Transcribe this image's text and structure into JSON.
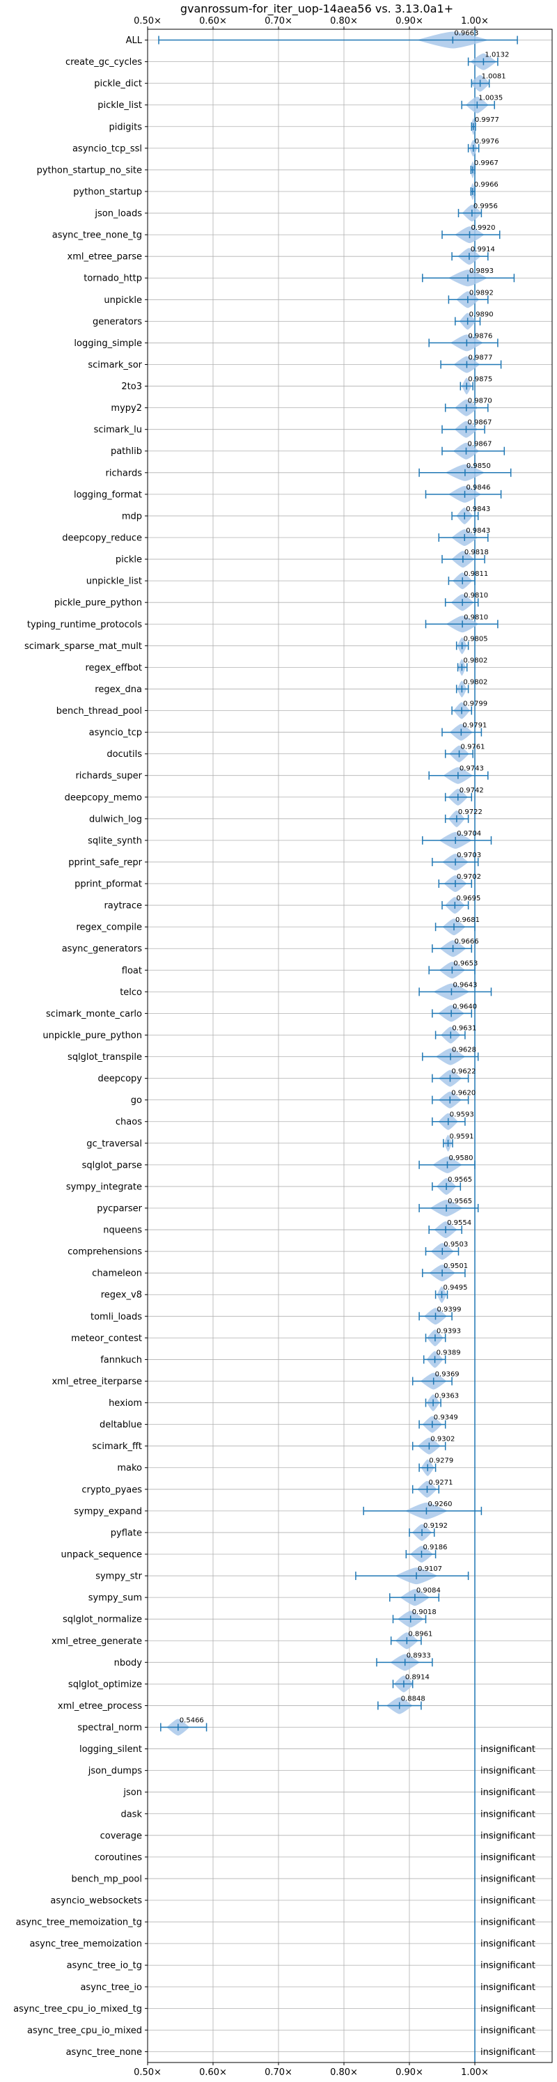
{
  "chart_data": {
    "type": "violin",
    "title": "gvanrossum-for_iter_uop-14aea56 vs. 3.13.0a1+",
    "xlim": [
      0.5,
      1.0
    ],
    "x_ticks": [
      0.5,
      0.6,
      0.7,
      0.8,
      0.9,
      1.0
    ],
    "x_tick_labels": [
      "0.50×",
      "0.60×",
      "0.70×",
      "0.80×",
      "0.90×",
      "1.00×"
    ],
    "reference_line": 1.0,
    "grid": true,
    "colors": {
      "violin": "#a9c8ea",
      "errorbar": "#1f77b4",
      "refline": "#1f77b4",
      "grid": "#b0b0b0"
    },
    "insignificant_label": "insignificant",
    "benchmarks": [
      {
        "name": "ALL",
        "value": 0.9663,
        "label": "0.9663",
        "lo": 0.517,
        "hi": 1.065,
        "spread": 0.11
      },
      {
        "name": "create_gc_cycles",
        "value": 1.0132,
        "label": "1.0132",
        "lo": 0.99,
        "hi": 1.035,
        "spread": 0.04
      },
      {
        "name": "pickle_dict",
        "value": 1.0081,
        "label": "1.0081",
        "lo": 0.995,
        "hi": 1.022,
        "spread": 0.03
      },
      {
        "name": "pickle_list",
        "value": 1.0035,
        "label": "1.0035",
        "lo": 0.98,
        "hi": 1.03,
        "spread": 0.035
      },
      {
        "name": "pidigits",
        "value": 0.9977,
        "label": "0.9977",
        "lo": 0.995,
        "hi": 1.001,
        "spread": 0.008
      },
      {
        "name": "asyncio_tcp_ssl",
        "value": 0.9976,
        "label": "0.9976",
        "lo": 0.99,
        "hi": 1.006,
        "spread": 0.012
      },
      {
        "name": "python_startup_no_site",
        "value": 0.9967,
        "label": "0.9967",
        "lo": 0.994,
        "hi": 1.0,
        "spread": 0.008
      },
      {
        "name": "python_startup",
        "value": 0.9966,
        "label": "0.9966",
        "lo": 0.994,
        "hi": 1.0,
        "spread": 0.008
      },
      {
        "name": "json_loads",
        "value": 0.9956,
        "label": "0.9956",
        "lo": 0.975,
        "hi": 1.01,
        "spread": 0.03
      },
      {
        "name": "async_tree_none_tg",
        "value": 0.992,
        "label": "0.9920",
        "lo": 0.95,
        "hi": 1.038,
        "spread": 0.045
      },
      {
        "name": "xml_etree_parse",
        "value": 0.9914,
        "label": "0.9914",
        "lo": 0.965,
        "hi": 1.02,
        "spread": 0.035
      },
      {
        "name": "tornado_http",
        "value": 0.9893,
        "label": "0.9893",
        "lo": 0.92,
        "hi": 1.06,
        "spread": 0.06
      },
      {
        "name": "unpickle",
        "value": 0.9892,
        "label": "0.9892",
        "lo": 0.96,
        "hi": 1.02,
        "spread": 0.035
      },
      {
        "name": "generators",
        "value": 0.989,
        "label": "0.9890",
        "lo": 0.97,
        "hi": 1.008,
        "spread": 0.025
      },
      {
        "name": "logging_simple",
        "value": 0.9876,
        "label": "0.9876",
        "lo": 0.93,
        "hi": 1.035,
        "spread": 0.05
      },
      {
        "name": "scimark_sor",
        "value": 0.9877,
        "label": "0.9877",
        "lo": 0.948,
        "hi": 1.04,
        "spread": 0.04
      },
      {
        "name": "2to3",
        "value": 0.9875,
        "label": "0.9875",
        "lo": 0.978,
        "hi": 0.997,
        "spread": 0.015
      },
      {
        "name": "mypy2",
        "value": 0.987,
        "label": "0.9870",
        "lo": 0.955,
        "hi": 1.02,
        "spread": 0.035
      },
      {
        "name": "scimark_lu",
        "value": 0.9867,
        "label": "0.9867",
        "lo": 0.95,
        "hi": 1.015,
        "spread": 0.035
      },
      {
        "name": "pathlib",
        "value": 0.9867,
        "label": "0.9867",
        "lo": 0.95,
        "hi": 1.045,
        "spread": 0.04
      },
      {
        "name": "richards",
        "value": 0.985,
        "label": "0.9850",
        "lo": 0.915,
        "hi": 1.055,
        "spread": 0.06
      },
      {
        "name": "logging_format",
        "value": 0.9846,
        "label": "0.9846",
        "lo": 0.925,
        "hi": 1.04,
        "spread": 0.05
      },
      {
        "name": "mdp",
        "value": 0.9843,
        "label": "0.9843",
        "lo": 0.965,
        "hi": 1.005,
        "spread": 0.025
      },
      {
        "name": "deepcopy_reduce",
        "value": 0.9843,
        "label": "0.9843",
        "lo": 0.945,
        "hi": 1.02,
        "spread": 0.04
      },
      {
        "name": "pickle",
        "value": 0.9818,
        "label": "0.9818",
        "lo": 0.95,
        "hi": 1.015,
        "spread": 0.035
      },
      {
        "name": "unpickle_list",
        "value": 0.9811,
        "label": "0.9811",
        "lo": 0.96,
        "hi": 1.0,
        "spread": 0.03
      },
      {
        "name": "pickle_pure_python",
        "value": 0.981,
        "label": "0.9810",
        "lo": 0.955,
        "hi": 1.005,
        "spread": 0.035
      },
      {
        "name": "typing_runtime_protocols",
        "value": 0.981,
        "label": "0.9810",
        "lo": 0.925,
        "hi": 1.035,
        "spread": 0.05
      },
      {
        "name": "scimark_sparse_mat_mult",
        "value": 0.9805,
        "label": "0.9805",
        "lo": 0.972,
        "hi": 0.99,
        "spread": 0.015
      },
      {
        "name": "regex_effbot",
        "value": 0.9802,
        "label": "0.9802",
        "lo": 0.974,
        "hi": 0.988,
        "spread": 0.012
      },
      {
        "name": "regex_dna",
        "value": 0.9802,
        "label": "0.9802",
        "lo": 0.972,
        "hi": 0.99,
        "spread": 0.015
      },
      {
        "name": "bench_thread_pool",
        "value": 0.9799,
        "label": "0.9799",
        "lo": 0.965,
        "hi": 0.995,
        "spread": 0.025
      },
      {
        "name": "asyncio_tcp",
        "value": 0.9791,
        "label": "0.9791",
        "lo": 0.95,
        "hi": 1.01,
        "spread": 0.035
      },
      {
        "name": "docutils",
        "value": 0.9761,
        "label": "0.9761",
        "lo": 0.955,
        "hi": 0.997,
        "spread": 0.03
      },
      {
        "name": "richards_super",
        "value": 0.9743,
        "label": "0.9743",
        "lo": 0.93,
        "hi": 1.02,
        "spread": 0.045
      },
      {
        "name": "deepcopy_memo",
        "value": 0.9742,
        "label": "0.9742",
        "lo": 0.955,
        "hi": 0.995,
        "spread": 0.03
      },
      {
        "name": "dulwich_log",
        "value": 0.9722,
        "label": "0.9722",
        "lo": 0.955,
        "hi": 0.99,
        "spread": 0.025
      },
      {
        "name": "sqlite_synth",
        "value": 0.9704,
        "label": "0.9704",
        "lo": 0.92,
        "hi": 1.025,
        "spread": 0.05
      },
      {
        "name": "pprint_safe_repr",
        "value": 0.9703,
        "label": "0.9703",
        "lo": 0.935,
        "hi": 1.005,
        "spread": 0.04
      },
      {
        "name": "pprint_pformat",
        "value": 0.9702,
        "label": "0.9702",
        "lo": 0.945,
        "hi": 0.995,
        "spread": 0.035
      },
      {
        "name": "raytrace",
        "value": 0.9695,
        "label": "0.9695",
        "lo": 0.95,
        "hi": 0.99,
        "spread": 0.03
      },
      {
        "name": "regex_compile",
        "value": 0.9681,
        "label": "0.9681",
        "lo": 0.94,
        "hi": 1.0,
        "spread": 0.035
      },
      {
        "name": "async_generators",
        "value": 0.9666,
        "label": "0.9666",
        "lo": 0.935,
        "hi": 0.995,
        "spread": 0.04
      },
      {
        "name": "float",
        "value": 0.9653,
        "label": "0.9653",
        "lo": 0.93,
        "hi": 1.0,
        "spread": 0.04
      },
      {
        "name": "telco",
        "value": 0.9643,
        "label": "0.9643",
        "lo": 0.915,
        "hi": 1.025,
        "spread": 0.055
      },
      {
        "name": "scimark_monte_carlo",
        "value": 0.964,
        "label": "0.9640",
        "lo": 0.935,
        "hi": 0.995,
        "spread": 0.04
      },
      {
        "name": "unpickle_pure_python",
        "value": 0.9631,
        "label": "0.9631",
        "lo": 0.94,
        "hi": 0.985,
        "spread": 0.03
      },
      {
        "name": "sqlglot_transpile",
        "value": 0.9628,
        "label": "0.9628",
        "lo": 0.92,
        "hi": 1.005,
        "spread": 0.045
      },
      {
        "name": "deepcopy",
        "value": 0.9622,
        "label": "0.9622",
        "lo": 0.935,
        "hi": 0.99,
        "spread": 0.035
      },
      {
        "name": "go",
        "value": 0.962,
        "label": "0.9620",
        "lo": 0.935,
        "hi": 0.99,
        "spread": 0.035
      },
      {
        "name": "chaos",
        "value": 0.9593,
        "label": "0.9593",
        "lo": 0.935,
        "hi": 0.985,
        "spread": 0.03
      },
      {
        "name": "gc_traversal",
        "value": 0.9591,
        "label": "0.9591",
        "lo": 0.952,
        "hi": 0.966,
        "spread": 0.012
      },
      {
        "name": "sqlglot_parse",
        "value": 0.958,
        "label": "0.9580",
        "lo": 0.915,
        "hi": 1.0,
        "spread": 0.045
      },
      {
        "name": "sympy_integrate",
        "value": 0.9565,
        "label": "0.9565",
        "lo": 0.935,
        "hi": 0.978,
        "spread": 0.03
      },
      {
        "name": "pycparser",
        "value": 0.9565,
        "label": "0.9565",
        "lo": 0.915,
        "hi": 1.005,
        "spread": 0.05
      },
      {
        "name": "nqueens",
        "value": 0.9554,
        "label": "0.9554",
        "lo": 0.93,
        "hi": 0.98,
        "spread": 0.035
      },
      {
        "name": "comprehensions",
        "value": 0.9503,
        "label": "0.9503",
        "lo": 0.925,
        "hi": 0.975,
        "spread": 0.035
      },
      {
        "name": "chameleon",
        "value": 0.9501,
        "label": "0.9501",
        "lo": 0.92,
        "hi": 0.985,
        "spread": 0.04
      },
      {
        "name": "regex_v8",
        "value": 0.9495,
        "label": "0.9495",
        "lo": 0.94,
        "hi": 0.958,
        "spread": 0.015
      },
      {
        "name": "tomli_loads",
        "value": 0.9399,
        "label": "0.9399",
        "lo": 0.915,
        "hi": 0.965,
        "spread": 0.035
      },
      {
        "name": "meteor_contest",
        "value": 0.9393,
        "label": "0.9393",
        "lo": 0.925,
        "hi": 0.955,
        "spread": 0.025
      },
      {
        "name": "fannkuch",
        "value": 0.9389,
        "label": "0.9389",
        "lo": 0.922,
        "hi": 0.955,
        "spread": 0.025
      },
      {
        "name": "xml_etree_iterparse",
        "value": 0.9369,
        "label": "0.9369",
        "lo": 0.905,
        "hi": 0.965,
        "spread": 0.04
      },
      {
        "name": "hexiom",
        "value": 0.9363,
        "label": "0.9363",
        "lo": 0.925,
        "hi": 0.948,
        "spread": 0.02
      },
      {
        "name": "deltablue",
        "value": 0.9349,
        "label": "0.9349",
        "lo": 0.915,
        "hi": 0.955,
        "spread": 0.03
      },
      {
        "name": "scimark_fft",
        "value": 0.9302,
        "label": "0.9302",
        "lo": 0.905,
        "hi": 0.955,
        "spread": 0.035
      },
      {
        "name": "mako",
        "value": 0.9279,
        "label": "0.9279",
        "lo": 0.915,
        "hi": 0.94,
        "spread": 0.02
      },
      {
        "name": "crypto_pyaes",
        "value": 0.9271,
        "label": "0.9271",
        "lo": 0.905,
        "hi": 0.945,
        "spread": 0.03
      },
      {
        "name": "sympy_expand",
        "value": 0.926,
        "label": "0.9260",
        "lo": 0.83,
        "hi": 1.01,
        "spread": 0.065
      },
      {
        "name": "pyflate",
        "value": 0.9192,
        "label": "0.9192",
        "lo": 0.9,
        "hi": 0.938,
        "spread": 0.03
      },
      {
        "name": "unpack_sequence",
        "value": 0.9186,
        "label": "0.9186",
        "lo": 0.895,
        "hi": 0.94,
        "spread": 0.035
      },
      {
        "name": "sympy_str",
        "value": 0.9107,
        "label": "0.9107",
        "lo": 0.818,
        "hi": 0.99,
        "spread": 0.065
      },
      {
        "name": "sympy_sum",
        "value": 0.9084,
        "label": "0.9084",
        "lo": 0.87,
        "hi": 0.945,
        "spread": 0.045
      },
      {
        "name": "sqlglot_normalize",
        "value": 0.9018,
        "label": "0.9018",
        "lo": 0.875,
        "hi": 0.925,
        "spread": 0.04
      },
      {
        "name": "xml_etree_generate",
        "value": 0.8961,
        "label": "0.8961",
        "lo": 0.872,
        "hi": 0.918,
        "spread": 0.035
      },
      {
        "name": "nbody",
        "value": 0.8933,
        "label": "0.8933",
        "lo": 0.85,
        "hi": 0.935,
        "spread": 0.045
      },
      {
        "name": "sqlglot_optimize",
        "value": 0.8914,
        "label": "0.8914",
        "lo": 0.875,
        "hi": 0.905,
        "spread": 0.03
      },
      {
        "name": "xml_etree_process",
        "value": 0.8848,
        "label": "0.8848",
        "lo": 0.852,
        "hi": 0.918,
        "spread": 0.04
      },
      {
        "name": "spectral_norm",
        "value": 0.5466,
        "label": "0.5466",
        "lo": 0.52,
        "hi": 0.59,
        "spread": 0.035
      },
      {
        "name": "logging_silent",
        "value": null,
        "insignificant": true
      },
      {
        "name": "json_dumps",
        "value": null,
        "insignificant": true
      },
      {
        "name": "json",
        "value": null,
        "insignificant": true
      },
      {
        "name": "dask",
        "value": null,
        "insignificant": true
      },
      {
        "name": "coverage",
        "value": null,
        "insignificant": true
      },
      {
        "name": "coroutines",
        "value": null,
        "insignificant": true
      },
      {
        "name": "bench_mp_pool",
        "value": null,
        "insignificant": true
      },
      {
        "name": "asyncio_websockets",
        "value": null,
        "insignificant": true
      },
      {
        "name": "async_tree_memoization_tg",
        "value": null,
        "insignificant": true
      },
      {
        "name": "async_tree_memoization",
        "value": null,
        "insignificant": true
      },
      {
        "name": "async_tree_io_tg",
        "value": null,
        "insignificant": true
      },
      {
        "name": "async_tree_io",
        "value": null,
        "insignificant": true
      },
      {
        "name": "async_tree_cpu_io_mixed_tg",
        "value": null,
        "insignificant": true
      },
      {
        "name": "async_tree_cpu_io_mixed",
        "value": null,
        "insignificant": true
      },
      {
        "name": "async_tree_none",
        "value": null,
        "insignificant": true
      }
    ]
  }
}
